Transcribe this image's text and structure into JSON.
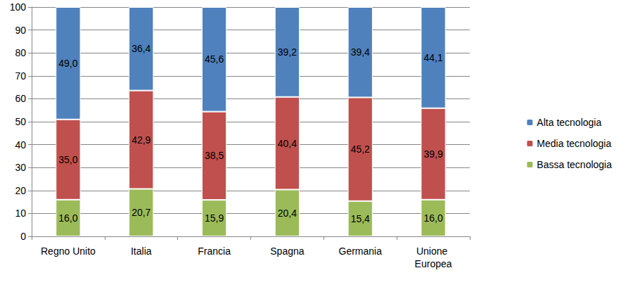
{
  "chart_data": {
    "type": "bar",
    "stacked": true,
    "data_labels": true,
    "grid": true,
    "legend": "right",
    "categories": [
      "Regno Unito",
      "Italia",
      "Francia",
      "Spagna",
      "Germania",
      "Unione Europea"
    ],
    "ylim": [
      0,
      100
    ],
    "yticks": [
      0,
      10,
      20,
      30,
      40,
      50,
      60,
      70,
      80,
      90,
      100
    ],
    "series": [
      {
        "name": "Bassa tecnologia",
        "color": "#9BBB59",
        "values": [
          16.0,
          20.7,
          15.9,
          20.4,
          15.4,
          16.0
        ],
        "value_labels": [
          "16,0",
          "20,7",
          "15,9",
          "20,4",
          "15,4",
          "16,0"
        ]
      },
      {
        "name": "Media tecnologia",
        "color": "#C0504D",
        "values": [
          35.0,
          42.9,
          38.5,
          40.4,
          45.2,
          39.9
        ],
        "value_labels": [
          "35,0",
          "42,9",
          "38,5",
          "40,4",
          "45,2",
          "39,9"
        ]
      },
      {
        "name": "Alta tecnologia",
        "color": "#4F81BD",
        "values": [
          49.0,
          36.4,
          45.6,
          39.2,
          39.4,
          44.1
        ],
        "value_labels": [
          "49,0",
          "36,4",
          "45,6",
          "39,2",
          "39,4",
          "44,1"
        ]
      }
    ]
  }
}
